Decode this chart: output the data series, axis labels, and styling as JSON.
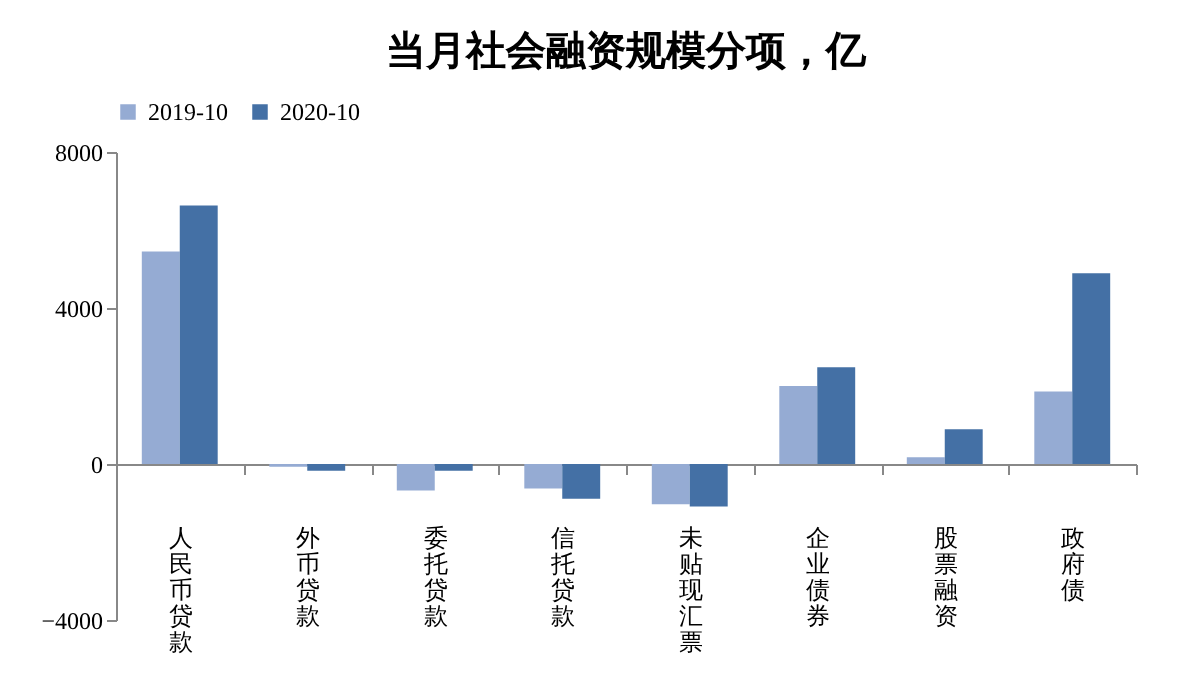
{
  "chart_data": {
    "type": "bar",
    "title": "当月社会融资规模分项，亿",
    "categories": [
      "人民币贷款",
      "外币贷款",
      "委托贷款",
      "信托贷款",
      "未贴现汇票",
      "企业债券",
      "股票融资",
      "政府债"
    ],
    "series": [
      {
        "name": "2019-10",
        "color": "#95abd3",
        "values": [
          5450,
          -70,
          -680,
          -630,
          -1030,
          2000,
          170,
          1860
        ]
      },
      {
        "name": "2020-10",
        "color": "#4470a5",
        "values": [
          6630,
          -170,
          -170,
          -890,
          -1090,
          2480,
          890,
          4890
        ]
      }
    ],
    "ylim": [
      -4000,
      8000
    ],
    "yticks": [
      -4000,
      0,
      4000,
      8000
    ],
    "grid": false,
    "legend": "top"
  }
}
